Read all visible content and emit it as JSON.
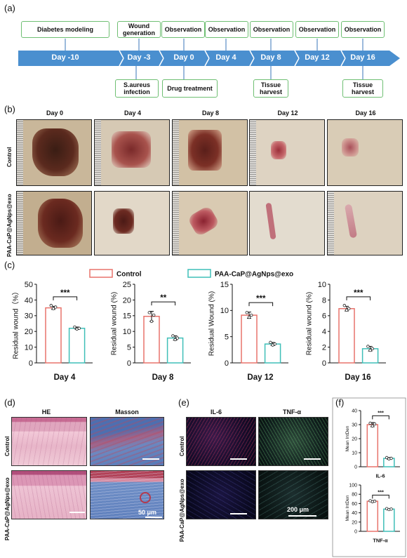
{
  "panels": {
    "a": "(a)",
    "b": "(b)",
    "c": "(c)",
    "d": "(d)",
    "e": "(e)",
    "f": "(f)"
  },
  "timeline": {
    "days": [
      "Day -10",
      "Day -3",
      "Day 0",
      "Day 4",
      "Day 8",
      "Day 12",
      "Day 16"
    ],
    "top_events": [
      "Diabetes modeling",
      "Wound generation",
      "Observation",
      "Observation",
      "Observation",
      "Observation",
      "Observation"
    ],
    "bottom_events": [
      "S.aureus infection",
      "Drug treatment",
      "Tissue harvest",
      "Tissue harvest"
    ]
  },
  "photos": {
    "columns": [
      "Day 0",
      "Day 4",
      "Day 8",
      "Day 12",
      "Day 16"
    ],
    "rows": [
      "Control",
      "PAA-CaP@AgNps@exo"
    ]
  },
  "legend": {
    "control": "Control",
    "treatment": "PAA-CaP@AgNps@exo"
  },
  "chart_data": [
    {
      "type": "bar",
      "title": "Day 4",
      "ylabel": "Residual wound（%）",
      "ylim": [
        0,
        50
      ],
      "yticks": [
        0,
        10,
        20,
        30,
        40,
        50
      ],
      "categories": [
        "Control",
        "PAA-CaP@AgNps@exo"
      ],
      "values": [
        35,
        22
      ],
      "errors": [
        1.0,
        0.8
      ],
      "points": [
        [
          36.5,
          34.5,
          35.5
        ],
        [
          22.8,
          21.5,
          22.0
        ]
      ],
      "significance": "***",
      "colors": [
        "#e8736c",
        "#3fbfb8"
      ]
    },
    {
      "type": "bar",
      "title": "Day 8",
      "ylabel": "Residual wound (%)",
      "ylim": [
        0,
        25
      ],
      "yticks": [
        0,
        5,
        10,
        15,
        20,
        25
      ],
      "categories": [
        "Control",
        "PAA-CaP@AgNps@exo"
      ],
      "values": [
        14.8,
        7.9
      ],
      "errors": [
        1.6,
        0.7
      ],
      "points": [
        [
          16.0,
          13.2,
          15.2
        ],
        [
          8.6,
          7.4,
          7.9
        ]
      ],
      "significance": "**",
      "colors": [
        "#e8736c",
        "#3fbfb8"
      ]
    },
    {
      "type": "bar",
      "title": "Day 12",
      "ylabel": "Residual Wound (%)",
      "ylim": [
        0,
        15
      ],
      "yticks": [
        0,
        5,
        10,
        15
      ],
      "categories": [
        "Control",
        "PAA-CaP@AgNps@exo"
      ],
      "values": [
        9.1,
        3.6
      ],
      "errors": [
        0.6,
        0.3
      ],
      "points": [
        [
          9.6,
          8.7,
          9.1
        ],
        [
          3.9,
          3.4,
          3.6
        ]
      ],
      "significance": "***",
      "colors": [
        "#e8736c",
        "#3fbfb8"
      ]
    },
    {
      "type": "bar",
      "title": "Day 16",
      "ylabel": "Residual wound (%)",
      "ylim": [
        0,
        10
      ],
      "yticks": [
        0,
        2,
        4,
        6,
        8,
        10
      ],
      "categories": [
        "Control",
        "PAA-CaP@AgNps@exo"
      ],
      "values": [
        6.9,
        1.8
      ],
      "errors": [
        0.3,
        0.3
      ],
      "points": [
        [
          7.3,
          6.7,
          6.9
        ],
        [
          2.1,
          1.6,
          1.8
        ]
      ],
      "significance": "***",
      "colors": [
        "#e8736c",
        "#3fbfb8"
      ]
    },
    {
      "type": "bar",
      "title": "IL-6",
      "ylabel": "Mean IntDen",
      "ylim": [
        0,
        40
      ],
      "yticks": [
        0,
        10,
        20,
        30,
        40
      ],
      "categories": [
        "Control",
        "PAA-CaP@AgNps@exo"
      ],
      "values": [
        30,
        6
      ],
      "errors": [
        1.5,
        0.6
      ],
      "points": [
        [
          31,
          29,
          30.5
        ],
        [
          6.5,
          5.6,
          6.0
        ]
      ],
      "significance": "***",
      "colors": [
        "#e8736c",
        "#3fbfb8"
      ]
    },
    {
      "type": "bar",
      "title": "TNF-α",
      "ylabel": "Mean IntDen",
      "ylim": [
        0,
        100
      ],
      "yticks": [
        0,
        20,
        40,
        60,
        80,
        100
      ],
      "categories": [
        "Control",
        "PAA-CaP@AgNps@exo"
      ],
      "values": [
        65,
        48
      ],
      "errors": [
        1.2,
        1.0
      ],
      "points": [
        [
          66,
          64,
          65
        ],
        [
          49,
          47,
          48
        ]
      ],
      "significance": "***",
      "colors": [
        "#e8736c",
        "#3fbfb8"
      ]
    }
  ],
  "histology": {
    "stains": [
      "HE",
      "Masson"
    ],
    "rows": [
      "Control",
      "PAA-CaP@AgNps@exo"
    ],
    "scale": "50 μm"
  },
  "immuno": {
    "stains": [
      "IL-6",
      "TNF-α"
    ],
    "rows": [
      "Control",
      "PAA-CaP@AgNps@exo"
    ],
    "scale": "200 μm"
  }
}
